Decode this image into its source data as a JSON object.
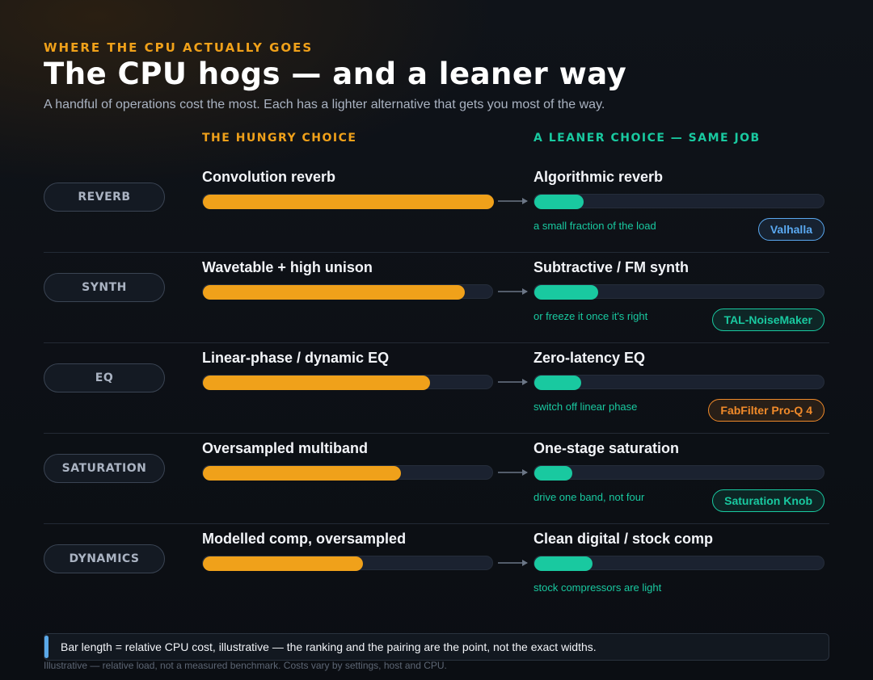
{
  "header": {
    "eyebrow": "WHERE THE CPU ACTUALLY GOES",
    "title": "The CPU hogs — and a leaner way",
    "subtitle": "A handful of operations cost the most. Each has a lighter alternative that gets you most of the way."
  },
  "columns": {
    "hungry": "THE HUNGRY CHOICE",
    "lean": "A LEANER CHOICE — SAME JOB"
  },
  "hungry_color": "#f0a11a",
  "lean_color": "#19c9a0",
  "rows": [
    {
      "category": "REVERB",
      "hungry": {
        "label": "Convolution reverb",
        "cost": 100
      },
      "lean": {
        "label": "Algorithmic reverb",
        "cost": 17,
        "note": "a small fraction of the load",
        "plugin": "Valhalla",
        "plugin_color": "#5aa8f0"
      }
    },
    {
      "category": "SYNTH",
      "hungry": {
        "label": "Wavetable + high unison",
        "cost": 90
      },
      "lean": {
        "label": "Subtractive / FM synth",
        "cost": 22,
        "note": "or freeze it once it's right",
        "plugin": "TAL-NoiseMaker",
        "plugin_color": "#19c9a0"
      }
    },
    {
      "category": "EQ",
      "hungry": {
        "label": "Linear-phase / dynamic EQ",
        "cost": 78
      },
      "lean": {
        "label": "Zero-latency EQ",
        "cost": 16,
        "note": "switch off linear phase",
        "plugin": "FabFilter Pro-Q 4",
        "plugin_color": "#f08a2a"
      }
    },
    {
      "category": "SATURATION",
      "hungry": {
        "label": "Oversampled multiband",
        "cost": 68
      },
      "lean": {
        "label": "One-stage saturation",
        "cost": 13,
        "note": "drive one band, not four",
        "plugin": "Saturation Knob",
        "plugin_color": "#19c9a0"
      }
    },
    {
      "category": "DYNAMICS",
      "hungry": {
        "label": "Modelled comp, oversampled",
        "cost": 55
      },
      "lean": {
        "label": "Clean digital / stock comp",
        "cost": 20,
        "note": "stock compressors are light"
      }
    }
  ],
  "note": "Bar length = relative CPU cost, illustrative — the ranking and the pairing are the point, not the exact widths.",
  "footnote": "Illustrative — relative load, not a measured benchmark. Costs vary by settings, host and CPU."
}
